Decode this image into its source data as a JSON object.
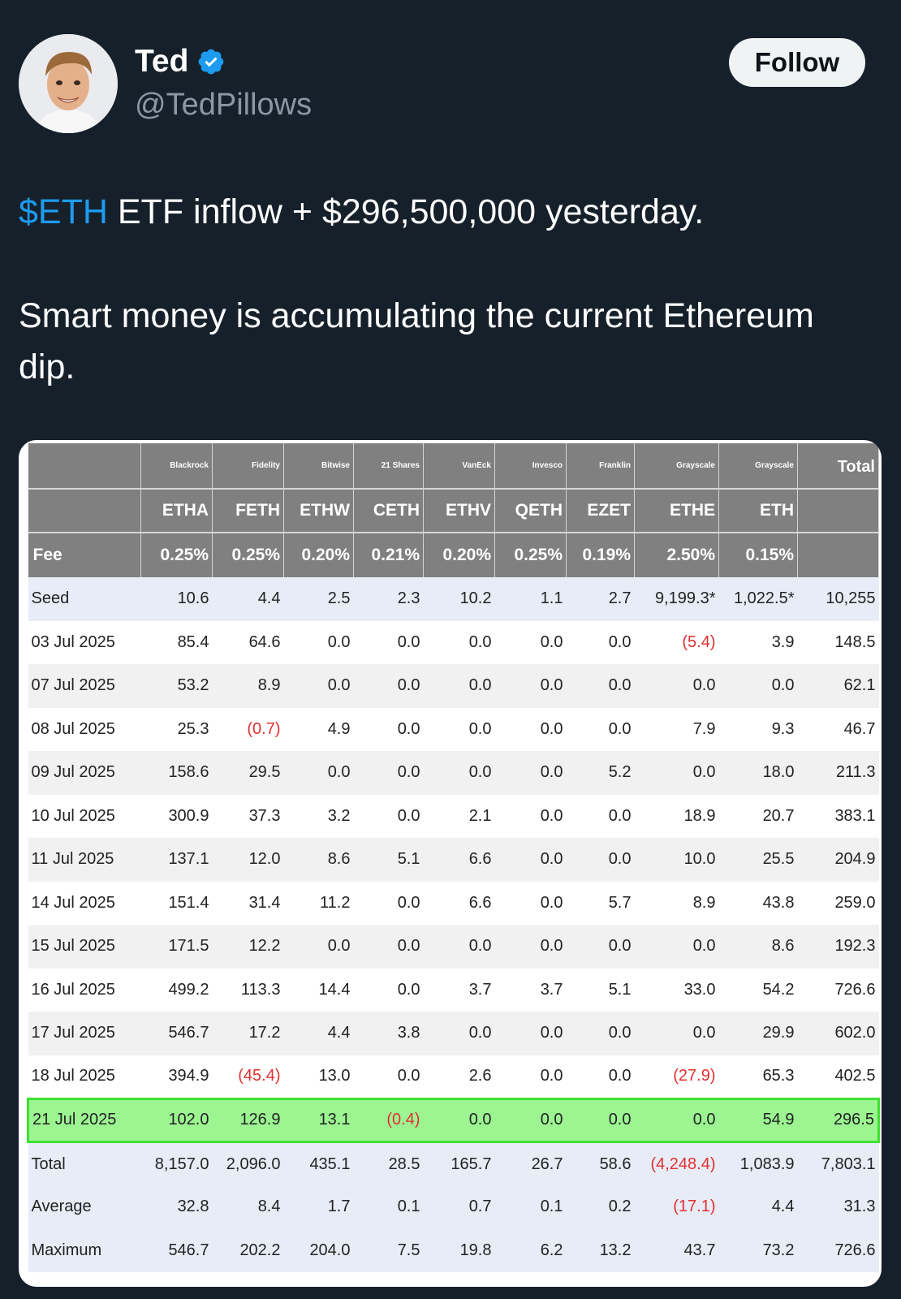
{
  "author": {
    "name": "Ted",
    "handle": "@TedPillows",
    "follow_label": "Follow"
  },
  "tweet": {
    "cashtag": "$ETH",
    "line1_rest": " ETF inflow + $296,500,000 yesterday.",
    "line2": "Smart money is accumulating the current Ethereum dip."
  },
  "table": {
    "issuers": [
      "Blackrock",
      "Fidelity",
      "Bitwise",
      "21 Shares",
      "VanEck",
      "Invesco",
      "Franklin",
      "Grayscale",
      "Grayscale"
    ],
    "total_label": "Total",
    "tickers": [
      "ETHA",
      "FETH",
      "ETHW",
      "CETH",
      "ETHV",
      "QETH",
      "EZET",
      "ETHE",
      "ETH"
    ],
    "fee_label": "Fee",
    "fees": [
      "0.25%",
      "0.25%",
      "0.20%",
      "0.21%",
      "0.20%",
      "0.25%",
      "0.19%",
      "2.50%",
      "0.15%"
    ],
    "rows": [
      {
        "label": "Seed",
        "values": [
          "10.6",
          "4.4",
          "2.5",
          "2.3",
          "10.2",
          "1.1",
          "2.7",
          "9,199.3*",
          "1,022.5*",
          "10,255"
        ]
      },
      {
        "label": "03 Jul 2025",
        "values": [
          "85.4",
          "64.6",
          "0.0",
          "0.0",
          "0.0",
          "0.0",
          "0.0",
          "(5.4)",
          "3.9",
          "148.5"
        ]
      },
      {
        "label": "07 Jul 2025",
        "values": [
          "53.2",
          "8.9",
          "0.0",
          "0.0",
          "0.0",
          "0.0",
          "0.0",
          "0.0",
          "0.0",
          "62.1"
        ]
      },
      {
        "label": "08 Jul 2025",
        "values": [
          "25.3",
          "(0.7)",
          "4.9",
          "0.0",
          "0.0",
          "0.0",
          "0.0",
          "7.9",
          "9.3",
          "46.7"
        ]
      },
      {
        "label": "09 Jul 2025",
        "values": [
          "158.6",
          "29.5",
          "0.0",
          "0.0",
          "0.0",
          "0.0",
          "5.2",
          "0.0",
          "18.0",
          "211.3"
        ]
      },
      {
        "label": "10 Jul 2025",
        "values": [
          "300.9",
          "37.3",
          "3.2",
          "0.0",
          "2.1",
          "0.0",
          "0.0",
          "18.9",
          "20.7",
          "383.1"
        ]
      },
      {
        "label": "11 Jul 2025",
        "values": [
          "137.1",
          "12.0",
          "8.6",
          "5.1",
          "6.6",
          "0.0",
          "0.0",
          "10.0",
          "25.5",
          "204.9"
        ]
      },
      {
        "label": "14 Jul 2025",
        "values": [
          "151.4",
          "31.4",
          "11.2",
          "0.0",
          "6.6",
          "0.0",
          "5.7",
          "8.9",
          "43.8",
          "259.0"
        ]
      },
      {
        "label": "15 Jul 2025",
        "values": [
          "171.5",
          "12.2",
          "0.0",
          "0.0",
          "0.0",
          "0.0",
          "0.0",
          "0.0",
          "8.6",
          "192.3"
        ]
      },
      {
        "label": "16 Jul 2025",
        "values": [
          "499.2",
          "113.3",
          "14.4",
          "0.0",
          "3.7",
          "3.7",
          "5.1",
          "33.0",
          "54.2",
          "726.6"
        ]
      },
      {
        "label": "17 Jul 2025",
        "values": [
          "546.7",
          "17.2",
          "4.4",
          "3.8",
          "0.0",
          "0.0",
          "0.0",
          "0.0",
          "29.9",
          "602.0"
        ]
      },
      {
        "label": "18 Jul 2025",
        "values": [
          "394.9",
          "(45.4)",
          "13.0",
          "0.0",
          "2.6",
          "0.0",
          "0.0",
          "(27.9)",
          "65.3",
          "402.5"
        ]
      },
      {
        "label": "21 Jul 2025",
        "values": [
          "102.0",
          "126.9",
          "13.1",
          "(0.4)",
          "0.0",
          "0.0",
          "0.0",
          "0.0",
          "54.9",
          "296.5"
        ],
        "highlight": true
      }
    ],
    "summary": [
      {
        "label": "Total",
        "values": [
          "8,157.0",
          "2,096.0",
          "435.1",
          "28.5",
          "165.7",
          "26.7",
          "58.6",
          "(4,248.4)",
          "1,083.9",
          "7,803.1"
        ]
      },
      {
        "label": "Average",
        "values": [
          "32.8",
          "8.4",
          "1.7",
          "0.1",
          "0.7",
          "0.1",
          "0.2",
          "(17.1)",
          "4.4",
          "31.3"
        ]
      },
      {
        "label": "Maximum",
        "values": [
          "546.7",
          "202.2",
          "204.0",
          "7.5",
          "19.8",
          "6.2",
          "13.2",
          "43.7",
          "73.2",
          "726.6"
        ]
      }
    ]
  },
  "colors": {
    "background": "#16202b",
    "cashtag": "#1d9bf0",
    "verified": "#1d9bf0",
    "negative": "#e03030",
    "highlight_row": "#9cf591"
  }
}
